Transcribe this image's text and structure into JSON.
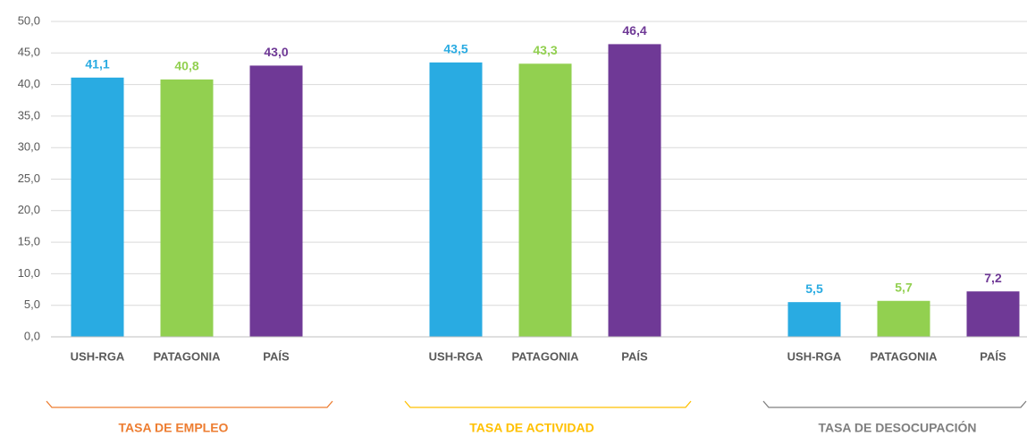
{
  "chart_data": {
    "type": "bar",
    "categories": [
      "TASA DE EMPLEO",
      "TASA DE ACTIVIDAD",
      "TASA DE DESOCUPACIÓN"
    ],
    "category_colors": [
      "#ed7d31",
      "#ffc000",
      "#7f7f7f"
    ],
    "series": [
      {
        "name": "USH-RGA",
        "color": "#29abe2",
        "values": [
          41.1,
          43.5,
          5.5
        ],
        "value_labels": [
          "41,1",
          "43,5",
          "5,5"
        ]
      },
      {
        "name": "PATAGONIA",
        "color": "#92d050",
        "values": [
          40.8,
          43.3,
          5.7
        ],
        "value_labels": [
          "40,8",
          "43,3",
          "5,7"
        ]
      },
      {
        "name": "PAÍS",
        "color": "#6f3996",
        "values": [
          43.0,
          46.4,
          7.2
        ],
        "value_labels": [
          "43,0",
          "46,4",
          "7,2"
        ]
      }
    ],
    "ylim": [
      0,
      50
    ],
    "yticks": [
      {
        "value": 0,
        "label": "0,0"
      },
      {
        "value": 5,
        "label": "5,0"
      },
      {
        "value": 10,
        "label": "10,0"
      },
      {
        "value": 15,
        "label": "15,0"
      },
      {
        "value": 20,
        "label": "20,0"
      },
      {
        "value": 25,
        "label": "25,0"
      },
      {
        "value": 30,
        "label": "30,0"
      },
      {
        "value": 35,
        "label": "35,0"
      },
      {
        "value": 40,
        "label": "40,0"
      },
      {
        "value": 45,
        "label": "45,0"
      },
      {
        "value": 50,
        "label": "50,0"
      }
    ],
    "grid": true
  }
}
